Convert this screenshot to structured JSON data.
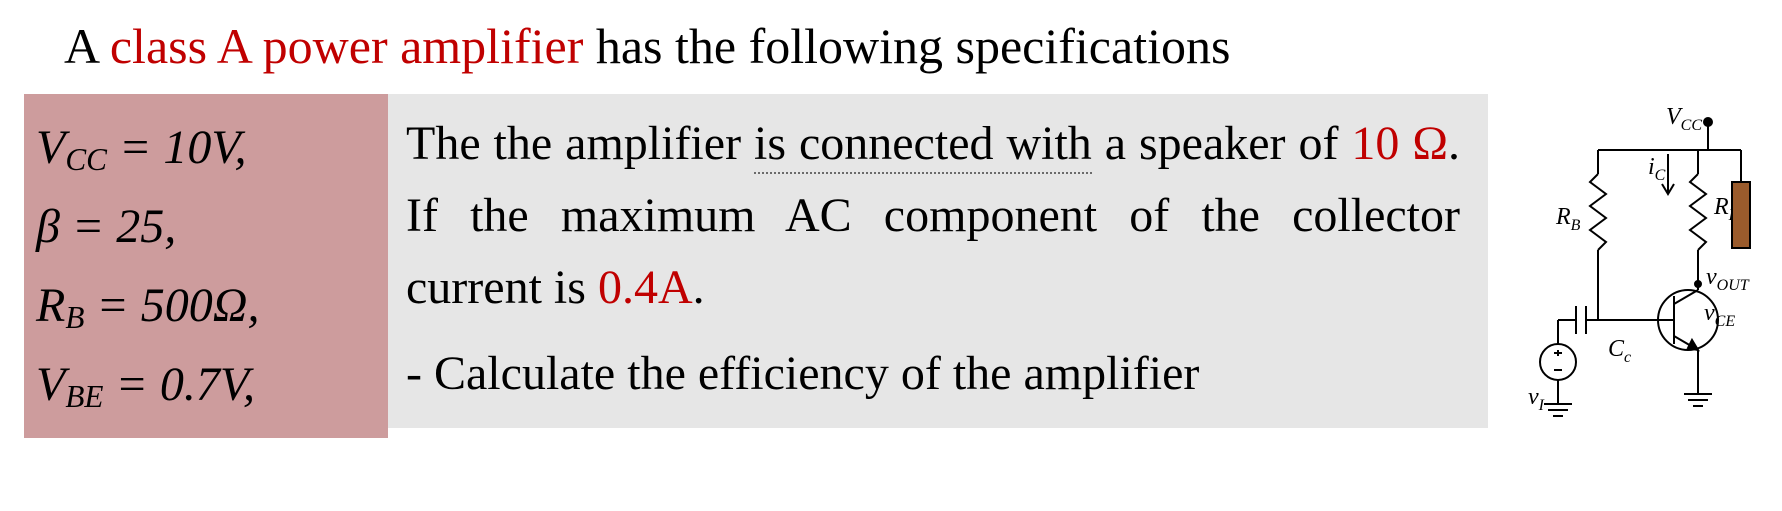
{
  "colors": {
    "red": "#c00000",
    "black": "#000000",
    "spec_bg": "#cd9c9d",
    "body_bg": "#e6e6e6",
    "speaker_fill": "#9a5b2c",
    "white": "#ffffff"
  },
  "title": {
    "t1": "A ",
    "t2": "class A power amplifier",
    "t3": " has the following specifications"
  },
  "specs": {
    "s1": {
      "lhs_sym": "V",
      "lhs_sub": "CC",
      "rhs_html": " = 10<span class=\"upright\"></span>V,"
    },
    "s2": {
      "lhs_raw": "β",
      "rhs_html": " = 25,"
    },
    "s3": {
      "lhs_sym": "R",
      "lhs_sub": "B",
      "rhs_html": " = 500Ω,"
    },
    "s4": {
      "lhs_sym": "V",
      "lhs_sub": "BE",
      "rhs_html": " = 0.7V,"
    }
  },
  "body": {
    "p1_a": "The the amplifier ",
    "p1_b": "is connected with",
    "p1_c": " a speaker of ",
    "p1_d": "10 Ω",
    "p1_e": ". If the maximum AC component of the collector current is ",
    "p1_f": "0.4A",
    "p1_g": ".",
    "p2": "- Calculate the efficiency of the amplifier"
  },
  "circuit": {
    "Vcc": "V",
    "Vcc_sub": "CC",
    "ic": "i",
    "ic_sub": "C",
    "RB": "R",
    "RB_sub": "B",
    "RL": "R",
    "RL_sub": "L",
    "vout": "v",
    "vout_sub": "OUT",
    "vce": "v",
    "vce_sub": "CE",
    "Cc": "C",
    "Cc_sub": "c",
    "vi": "v",
    "vi_sub": "I",
    "stroke": "#000000",
    "stroke_w": 2
  }
}
